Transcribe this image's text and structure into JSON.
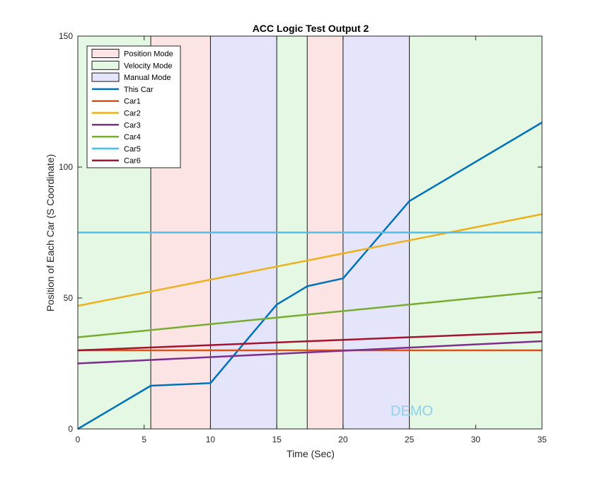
{
  "chart_data": {
    "type": "line",
    "title": "ACC Logic Test Output 2",
    "xlabel": "Time (Sec)",
    "ylabel": "Position of Each Car (S Coordinate)",
    "xlim": [
      0,
      35
    ],
    "ylim": [
      0,
      150
    ],
    "xticks": [
      0,
      5,
      10,
      15,
      20,
      25,
      30,
      35
    ],
    "yticks": [
      0,
      50,
      100,
      150
    ],
    "grid": false,
    "legend_placement": "top-left",
    "watermark": "DEMO",
    "modes": [
      {
        "name": "Position Mode",
        "color": "#fde4e4"
      },
      {
        "name": "Velocity Mode",
        "color": "#e4f8e4"
      },
      {
        "name": "Manual Mode",
        "color": "#e4e4fa"
      }
    ],
    "mode_bands": [
      {
        "mode": "Velocity Mode",
        "x": [
          0,
          5.5
        ]
      },
      {
        "mode": "Position Mode",
        "x": [
          5.5,
          10
        ]
      },
      {
        "mode": "Manual Mode",
        "x": [
          10,
          15
        ]
      },
      {
        "mode": "Velocity Mode",
        "x": [
          15,
          17.3
        ]
      },
      {
        "mode": "Position Mode",
        "x": [
          17.3,
          20
        ]
      },
      {
        "mode": "Manual Mode",
        "x": [
          20,
          25
        ]
      },
      {
        "mode": "Velocity Mode",
        "x": [
          25,
          35
        ]
      }
    ],
    "series": [
      {
        "name": "This Car",
        "color": "#0072bd",
        "x": [
          0,
          5.5,
          10,
          15,
          17.3,
          20,
          25,
          35
        ],
        "y": [
          0,
          16.5,
          17.5,
          47.5,
          54.5,
          57.5,
          87,
          117
        ]
      },
      {
        "name": "Car1",
        "color": "#d95319",
        "x": [
          0,
          35
        ],
        "y": [
          30,
          30
        ]
      },
      {
        "name": "Car2",
        "color": "#edb120",
        "x": [
          0,
          35
        ],
        "y": [
          47,
          82
        ]
      },
      {
        "name": "Car3",
        "color": "#7e2f8e",
        "x": [
          0,
          35
        ],
        "y": [
          25,
          33.5
        ]
      },
      {
        "name": "Car4",
        "color": "#77ac30",
        "x": [
          0,
          35
        ],
        "y": [
          35,
          52.5
        ]
      },
      {
        "name": "Car5",
        "color": "#4dbeee",
        "x": [
          0,
          35
        ],
        "y": [
          75,
          75
        ]
      },
      {
        "name": "Car6",
        "color": "#a2142f",
        "x": [
          0,
          35
        ],
        "y": [
          30,
          37
        ]
      }
    ]
  }
}
